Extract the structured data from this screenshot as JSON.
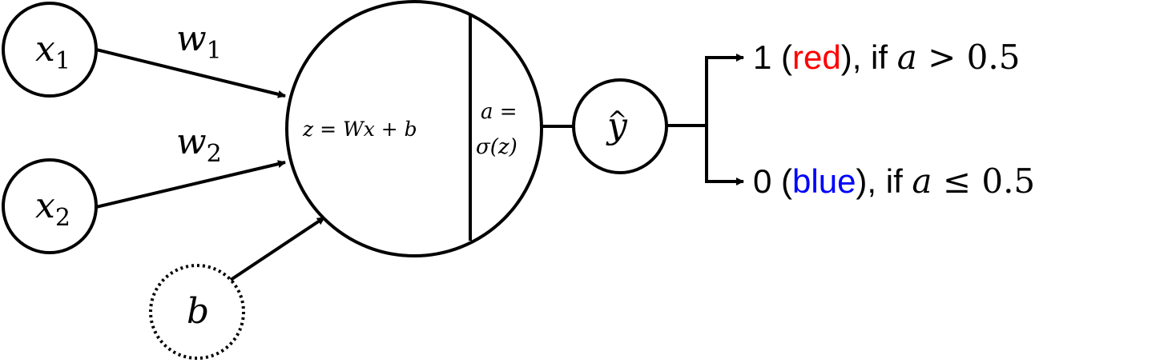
{
  "inputs": {
    "x1": {
      "base": "x",
      "sub": "1"
    },
    "x2": {
      "base": "x",
      "sub": "2"
    },
    "bias": "b"
  },
  "weights": {
    "w1": {
      "base": "w",
      "sub": "1"
    },
    "w2": {
      "base": "w",
      "sub": "2"
    }
  },
  "neuron": {
    "linear": "z = Wx + b",
    "activation_line1": "a =",
    "activation_line2": "σ(z)"
  },
  "output": {
    "base": "y",
    "hat": "^"
  },
  "decisions": [
    {
      "value": "1 (",
      "label": "red",
      "label_color": "#ff0000",
      "close": "), if ",
      "var": "a",
      "op": " > 0.5"
    },
    {
      "value": "0 (",
      "label": "blue",
      "label_color": "#0000ff",
      "close": "), if ",
      "var": "a",
      "op": " ≤ 0.5"
    }
  ]
}
